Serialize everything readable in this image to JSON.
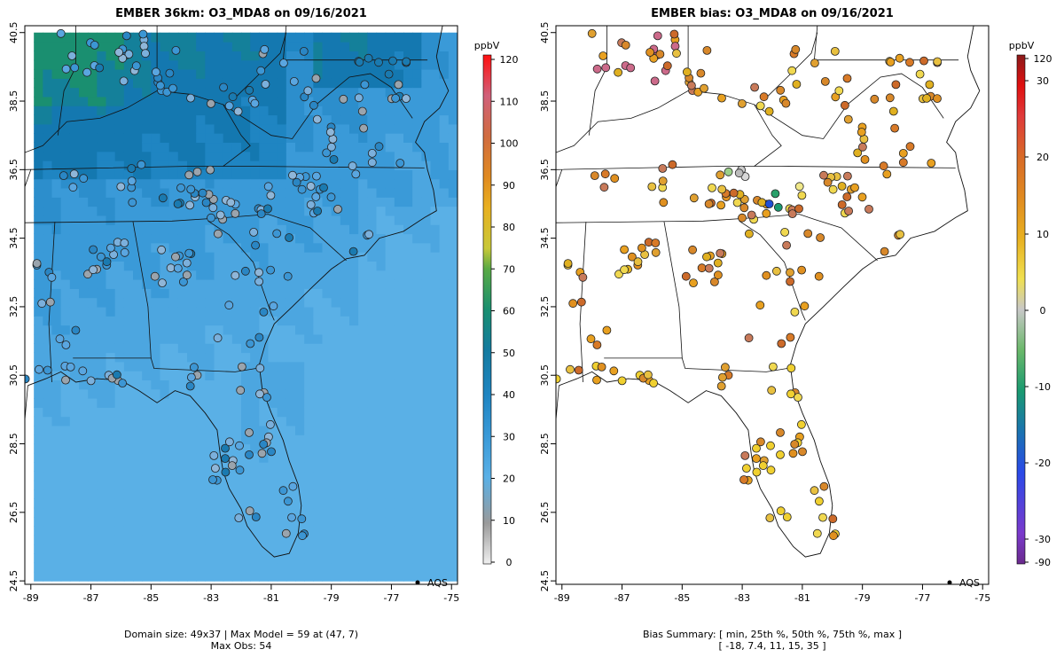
{
  "left_panel": {
    "title": "EMBER 36km: O3_MDA8 on 09/16/2021",
    "footer_line1": "Domain size: 49x37 | Max Model = 59 at (47, 7)",
    "footer_line2": "Max Obs: 54",
    "legend_label": "AQS",
    "colorbar_unit": "ppbV",
    "colorbar_ticks": [
      "0",
      "10",
      "20",
      "30",
      "40",
      "50",
      "60",
      "70",
      "80",
      "90",
      "100",
      "110",
      "120"
    ]
  },
  "right_panel": {
    "title": "EMBER bias: O3_MDA8 on 09/16/2021",
    "footer_line1": "Bias Summary: [ min, 25th %, 50th %, 75th %, max ]",
    "footer_line2": "[ -18,  7.4,  11,  15,  35 ]",
    "legend_label": "AQS",
    "colorbar_unit": "ppbV",
    "colorbar_ticks": [
      "-90",
      "-30",
      "-20",
      "-10",
      "0",
      "10",
      "20",
      "30",
      "120"
    ]
  },
  "axes": {
    "x_ticks": [
      "-89",
      "-87",
      "-85",
      "-83",
      "-81",
      "-79",
      "-77",
      "-75"
    ],
    "y_ticks": [
      "24.5",
      "26.5",
      "28.5",
      "30.5",
      "32.5",
      "34.5",
      "36.5",
      "38.5",
      "40.5"
    ],
    "lon_range": [
      -89.2,
      -74.8
    ],
    "lat_range": [
      24.4,
      40.7
    ]
  },
  "colors": {
    "model_cbar": [
      "#e8e8e8",
      "#9a9a9a",
      "#5ab0e6",
      "#3a9ad8",
      "#1f85c2",
      "#0b79a8",
      "#1a8f70",
      "#2ea84f",
      "#9ac23a",
      "#f2d23c",
      "#e8a020",
      "#d8752a",
      "#cc6a8a",
      "#e23a3a",
      "#ff1010"
    ],
    "bias_cbar": [
      "#6a2a8c",
      "#7a3acc",
      "#4a4ae8",
      "#1f4fd6",
      "#1a73b0",
      "#1a9a70",
      "#5ab86a",
      "#c8c8c8",
      "#f0e050",
      "#e8b020",
      "#e08a20",
      "#d86a28",
      "#c85a60",
      "#e02020",
      "#8b1a1a"
    ]
  }
}
